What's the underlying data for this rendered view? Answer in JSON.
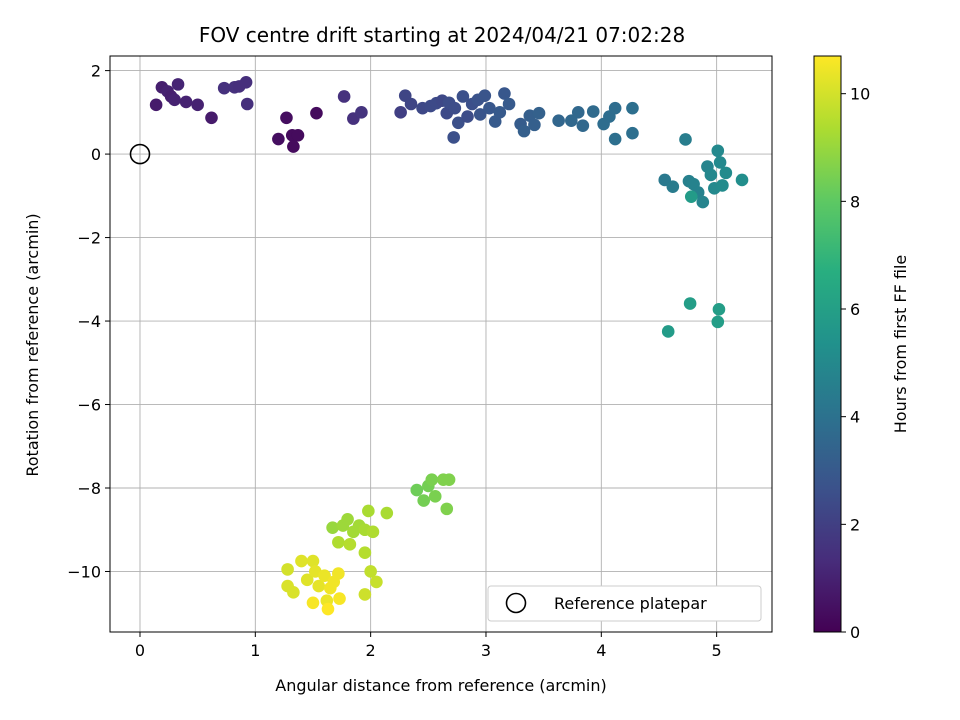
{
  "chart_data": {
    "type": "scatter",
    "title": "FOV centre drift starting at 2024/04/21 07:02:28",
    "xlabel": "Angular distance from reference (arcmin)",
    "ylabel": "Rotation from reference (arcmin)",
    "xlim": [
      -0.26,
      5.48
    ],
    "ylim": [
      -11.45,
      2.35
    ],
    "xticks": [
      0,
      1,
      2,
      3,
      4,
      5
    ],
    "yticks": [
      2,
      0,
      -2,
      -4,
      -6,
      -8,
      -10
    ],
    "grid": true,
    "colormap": "viridis",
    "colorbar": {
      "label": "Hours from first FF file",
      "min": 0,
      "max": 10.7,
      "ticks": [
        0,
        2,
        4,
        6,
        8,
        10
      ]
    },
    "legend": {
      "position": "lower-right",
      "entries": [
        "Reference platepar"
      ]
    },
    "reference_point": {
      "x": 0,
      "y": 0,
      "label": "Reference platepar"
    },
    "series": [
      {
        "points": [
          [
            0.14,
            1.18,
            0.8
          ],
          [
            0.19,
            1.6,
            0.9
          ],
          [
            0.24,
            1.5,
            1.0
          ],
          [
            0.27,
            1.38,
            0.9
          ],
          [
            0.3,
            1.3,
            1.0
          ],
          [
            0.33,
            1.67,
            1.1
          ],
          [
            0.4,
            1.25,
            1.0
          ],
          [
            0.5,
            1.18,
            1.0
          ],
          [
            0.62,
            0.87,
            0.8
          ],
          [
            0.73,
            1.58,
            1.5
          ],
          [
            0.82,
            1.6,
            1.5
          ],
          [
            0.86,
            1.62,
            1.4
          ],
          [
            0.92,
            1.72,
            1.4
          ],
          [
            0.93,
            1.2,
            1.4
          ],
          [
            1.2,
            0.36,
            0.4
          ],
          [
            1.27,
            0.87,
            0.4
          ],
          [
            1.32,
            0.45,
            0.3
          ],
          [
            1.33,
            0.18,
            0.3
          ],
          [
            1.37,
            0.45,
            0.3
          ],
          [
            1.53,
            0.98,
            0.3
          ],
          [
            1.77,
            1.38,
            1.5
          ],
          [
            1.85,
            0.85,
            1.5
          ],
          [
            1.92,
            1.0,
            1.6
          ],
          [
            2.26,
            1.0,
            2.0
          ],
          [
            2.3,
            1.4,
            2.2
          ],
          [
            2.35,
            1.2,
            2.2
          ],
          [
            2.45,
            1.1,
            2.3
          ],
          [
            2.52,
            1.15,
            2.4
          ],
          [
            2.57,
            1.22,
            2.4
          ],
          [
            2.62,
            1.28,
            2.3
          ],
          [
            2.66,
            0.98,
            2.4
          ],
          [
            2.68,
            1.23,
            2.5
          ],
          [
            2.72,
            0.4,
            2.6
          ],
          [
            2.73,
            1.1,
            2.5
          ],
          [
            2.76,
            0.75,
            2.6
          ],
          [
            2.8,
            1.38,
            2.6
          ],
          [
            2.84,
            0.9,
            2.5
          ],
          [
            2.88,
            1.2,
            2.6
          ],
          [
            2.93,
            1.3,
            2.7
          ],
          [
            2.95,
            0.95,
            2.8
          ],
          [
            2.99,
            1.4,
            2.8
          ],
          [
            3.03,
            1.1,
            2.9
          ],
          [
            3.08,
            0.78,
            3.0
          ],
          [
            3.12,
            1.0,
            3.0
          ],
          [
            3.16,
            1.45,
            2.9
          ],
          [
            3.2,
            1.2,
            3.0
          ],
          [
            3.3,
            0.72,
            3.1
          ],
          [
            3.33,
            0.55,
            3.2
          ],
          [
            3.38,
            0.92,
            3.2
          ],
          [
            3.42,
            0.7,
            3.2
          ],
          [
            3.46,
            0.98,
            3.3
          ],
          [
            3.63,
            0.8,
            3.5
          ],
          [
            3.74,
            0.8,
            3.6
          ],
          [
            3.8,
            1.0,
            3.6
          ],
          [
            3.84,
            0.68,
            3.6
          ],
          [
            3.93,
            1.02,
            3.7
          ],
          [
            4.02,
            0.72,
            3.8
          ],
          [
            4.07,
            0.9,
            3.8
          ],
          [
            4.12,
            1.1,
            3.8
          ],
          [
            4.12,
            0.36,
            3.9
          ],
          [
            4.27,
            1.1,
            3.9
          ],
          [
            4.27,
            0.5,
            3.9
          ],
          [
            4.55,
            -0.62,
            4.3
          ],
          [
            4.62,
            -0.78,
            4.4
          ],
          [
            4.73,
            0.35,
            4.5
          ],
          [
            4.76,
            -0.65,
            4.6
          ],
          [
            4.8,
            -0.72,
            4.7
          ],
          [
            4.84,
            -0.92,
            4.7
          ],
          [
            4.88,
            -1.15,
            4.8
          ],
          [
            4.92,
            -0.3,
            4.8
          ],
          [
            4.95,
            -0.5,
            4.9
          ],
          [
            4.98,
            -0.82,
            5.0
          ],
          [
            5.01,
            0.08,
            5.0
          ],
          [
            5.03,
            -0.2,
            5.0
          ],
          [
            5.05,
            -0.75,
            5.1
          ],
          [
            5.08,
            -0.45,
            5.1
          ],
          [
            5.22,
            -0.62,
            5.2
          ],
          [
            4.78,
            -1.02,
            5.8
          ],
          [
            4.58,
            -4.25,
            5.8
          ],
          [
            4.77,
            -3.58,
            5.9
          ],
          [
            5.02,
            -3.72,
            5.9
          ],
          [
            5.01,
            -4.02,
            5.9
          ],
          [
            2.4,
            -8.05,
            8.3
          ],
          [
            2.46,
            -8.3,
            8.4
          ],
          [
            2.5,
            -7.95,
            8.4
          ],
          [
            2.53,
            -7.8,
            8.5
          ],
          [
            2.56,
            -8.2,
            8.5
          ],
          [
            2.63,
            -7.8,
            8.6
          ],
          [
            2.68,
            -7.8,
            8.6
          ],
          [
            2.66,
            -8.5,
            8.6
          ],
          [
            1.67,
            -8.95,
            9.0
          ],
          [
            1.76,
            -8.9,
            9.1
          ],
          [
            1.8,
            -8.75,
            9.1
          ],
          [
            1.85,
            -9.05,
            9.2
          ],
          [
            1.9,
            -8.9,
            9.2
          ],
          [
            1.95,
            -9.0,
            9.3
          ],
          [
            1.98,
            -8.55,
            9.3
          ],
          [
            2.02,
            -9.05,
            9.4
          ],
          [
            2.14,
            -8.6,
            9.3
          ],
          [
            1.72,
            -9.3,
            9.4
          ],
          [
            1.82,
            -9.35,
            9.5
          ],
          [
            1.95,
            -9.55,
            9.5
          ],
          [
            1.95,
            -10.55,
            9.9
          ],
          [
            2.0,
            -10.0,
            9.7
          ],
          [
            2.05,
            -10.25,
            9.8
          ],
          [
            1.28,
            -9.95,
            10.0
          ],
          [
            1.28,
            -10.35,
            10.1
          ],
          [
            1.33,
            -10.5,
            10.1
          ],
          [
            1.4,
            -9.75,
            10.2
          ],
          [
            1.45,
            -10.2,
            10.2
          ],
          [
            1.5,
            -9.75,
            10.2
          ],
          [
            1.52,
            -10.0,
            10.3
          ],
          [
            1.55,
            -10.35,
            10.3
          ],
          [
            1.6,
            -10.1,
            10.4
          ],
          [
            1.62,
            -10.7,
            10.4
          ],
          [
            1.65,
            -10.4,
            10.5
          ],
          [
            1.68,
            -10.25,
            10.5
          ],
          [
            1.72,
            -10.05,
            10.5
          ],
          [
            1.73,
            -10.65,
            10.6
          ],
          [
            1.5,
            -10.75,
            10.6
          ],
          [
            1.63,
            -10.9,
            10.7
          ]
        ]
      }
    ]
  }
}
